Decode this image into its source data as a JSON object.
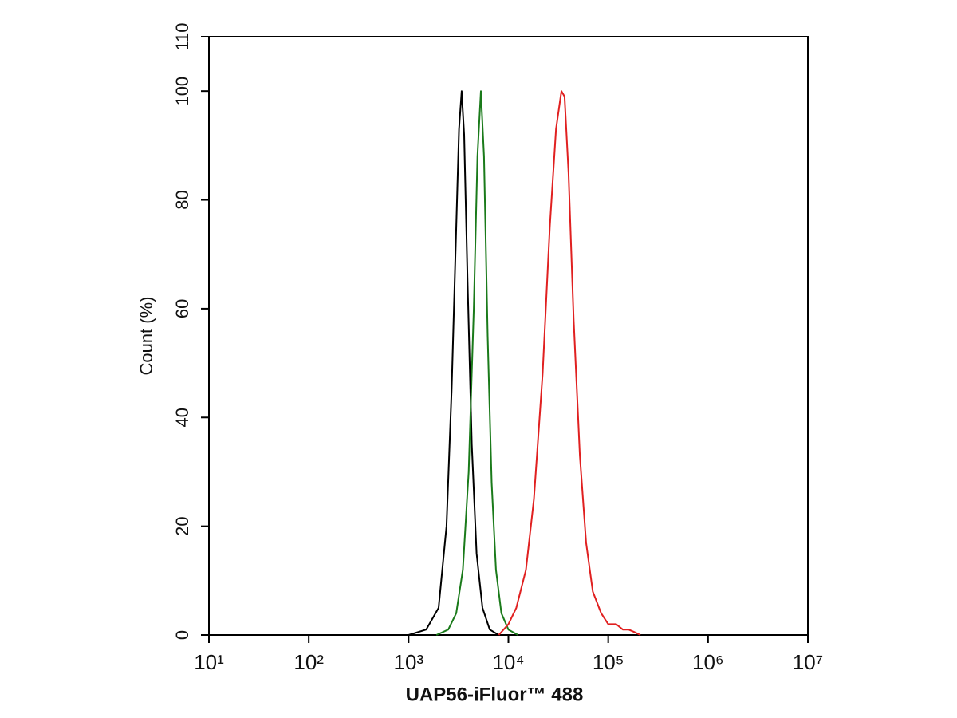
{
  "chart_data": {
    "type": "line",
    "xlabel": "UAP56-iFluor™ 488",
    "ylabel": "Count  (%)",
    "log_x": true,
    "xlim": [
      10,
      10000000
    ],
    "xticks": [
      {
        "value": 10,
        "label": "10¹"
      },
      {
        "value": 100,
        "label": "10²"
      },
      {
        "value": 1000,
        "label": "10³"
      },
      {
        "value": 10000,
        "label": "10⁴"
      },
      {
        "value": 100000,
        "label": "10⁵"
      },
      {
        "value": 1000000,
        "label": "10⁶"
      },
      {
        "value": 10000000,
        "label": "10⁷"
      }
    ],
    "ylim": [
      0,
      110
    ],
    "yticks": [
      0,
      20,
      40,
      60,
      80,
      100,
      110
    ],
    "series": [
      {
        "color": "#000000",
        "x": [
          1000,
          1500,
          2000,
          2400,
          2700,
          3000,
          3200,
          3400,
          3600,
          3900,
          4300,
          4800,
          5500,
          6500,
          8000
        ],
        "values": [
          0,
          1,
          5,
          20,
          45,
          75,
          93,
          100,
          92,
          65,
          35,
          15,
          5,
          1,
          0
        ]
      },
      {
        "color": "#1a7a1a",
        "x": [
          1900,
          2500,
          3000,
          3500,
          4000,
          4500,
          4900,
          5300,
          5700,
          6200,
          6800,
          7500,
          8500,
          10000,
          12500
        ],
        "values": [
          0,
          1,
          4,
          12,
          30,
          60,
          88,
          100,
          88,
          55,
          28,
          12,
          4,
          1,
          0
        ]
      },
      {
        "color": "#e02020",
        "x": [
          8000,
          10000,
          12000,
          15000,
          18000,
          22000,
          26000,
          30000,
          34000,
          36500,
          40000,
          45000,
          52000,
          60000,
          70000,
          85000,
          100000,
          120000,
          140000,
          160000,
          185000,
          210000
        ],
        "values": [
          0,
          2,
          5,
          12,
          25,
          48,
          75,
          93,
          100,
          99,
          85,
          58,
          33,
          17,
          8,
          4,
          2,
          2,
          1,
          1,
          0.5,
          0
        ]
      }
    ]
  }
}
